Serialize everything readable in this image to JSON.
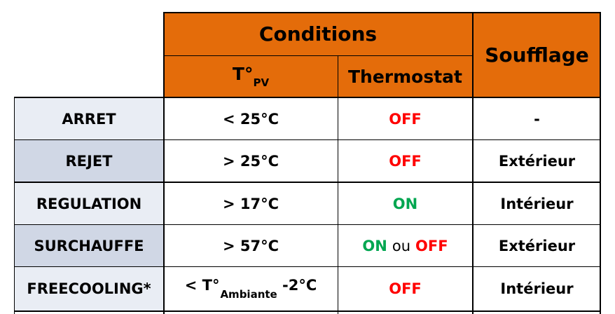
{
  "header": {
    "conditions": "Conditions",
    "soufflage": "Soufflage",
    "tpv_main": "T°",
    "tpv_sub": "PV",
    "thermostat": "Thermostat"
  },
  "rows": [
    {
      "mode": "ARRET",
      "temp": "< 25°C",
      "thermostat": "OFF",
      "soufflage": "-"
    },
    {
      "mode": "REJET",
      "temp": "> 25°C",
      "thermostat": "OFF",
      "soufflage": "Extérieur"
    },
    {
      "mode": "REGULATION",
      "temp": "> 17°C",
      "thermostat": "ON",
      "soufflage": "Intérieur"
    },
    {
      "mode": "SURCHAUFFE",
      "temp": "> 57°C",
      "thermostat_on": "ON",
      "thermostat_ou": "ou",
      "thermostat_off": "OFF",
      "soufflage": "Extérieur"
    },
    {
      "mode": "FREECOOLING*",
      "temp_prefix": "< T°",
      "temp_sub": "Ambiante",
      "temp_suffix": " -2°C",
      "thermostat": "OFF",
      "soufflage": "Intérieur"
    }
  ],
  "colors": {
    "header_bg": "#e46c0a",
    "row_light": "#e9edf4",
    "row_dark": "#d0d7e5",
    "off": "#ff0000",
    "on": "#00a650"
  }
}
